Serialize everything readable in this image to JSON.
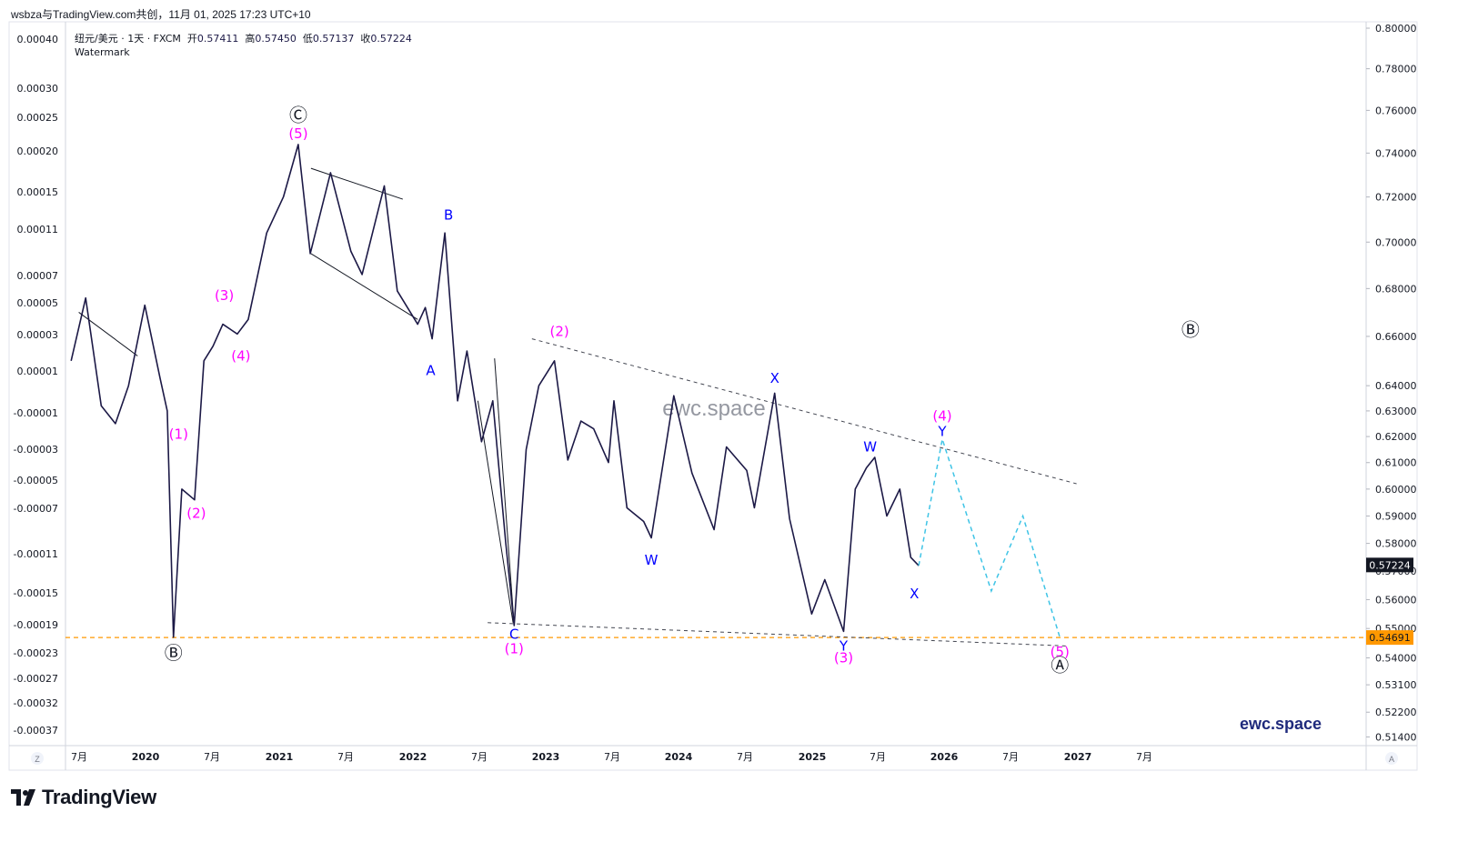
{
  "header": {
    "title": "wsbza与TradingView.com共创，11月 01, 2025 17:23 UTC+10"
  },
  "legend": {
    "symbol": "纽元/美元 · 1天 · FXCM",
    "open_label": "开",
    "open": "0.57411",
    "high_label": "高",
    "high": "0.57450",
    "low_label": "低",
    "low": "0.57137",
    "close_label": "收",
    "close": "0.57224",
    "indicator": "Watermark"
  },
  "watermark": "ewc.space",
  "brand": "ewc.space",
  "footer": {
    "logo_text": "TradingView"
  },
  "axis_buttons": {
    "left": "Z",
    "right": "A"
  },
  "colors": {
    "candles": "#1c1946",
    "wave_magenta": "#ff00ff",
    "wave_blue": "#0000ff",
    "projection": "#3fc4e6",
    "support_line": "#ff9800",
    "price_tag": "#131722",
    "support_tag": "#ff9800"
  },
  "chart_data": {
    "type": "line",
    "instrument": "NZD/USD",
    "timeframe": "1D",
    "right_axis": {
      "ticks": [
        "0.80000",
        "0.78000",
        "0.76000",
        "0.74000",
        "0.72000",
        "0.70000",
        "0.68000",
        "0.66000",
        "0.64000",
        "0.63000",
        "0.62000",
        "0.61000",
        "0.60000",
        "0.59000",
        "0.58000",
        "0.57000",
        "0.56000",
        "0.55000",
        "0.54000",
        "0.53100",
        "0.52200",
        "0.51400"
      ],
      "scale": "log",
      "current_price": "0.57224",
      "support_price": "0.54691"
    },
    "left_axis": {
      "ticks": [
        "0.00040",
        "0.00030",
        "0.00025",
        "0.00020",
        "0.00015",
        "0.00011",
        "0.00007",
        "0.00005",
        "0.00003",
        "0.00001",
        "-0.00001",
        "-0.00003",
        "-0.00005",
        "-0.00007",
        "-0.00011",
        "-0.00015",
        "-0.00019",
        "-0.00023",
        "-0.00027",
        "-0.00032",
        "-0.00037"
      ]
    },
    "x_axis": {
      "ticks": [
        "7月",
        "2020",
        "7月",
        "2021",
        "7月",
        "2022",
        "7月",
        "2023",
        "7月",
        "2024",
        "7月",
        "2025",
        "7月",
        "2026",
        "7月",
        "2027",
        "7月"
      ]
    },
    "series": [
      {
        "values": [
          {
            "x": "2019-06-10",
            "y": 0.65
          },
          {
            "x": "2019-07-20",
            "y": 0.676
          },
          {
            "x": "2019-09-01",
            "y": 0.632
          },
          {
            "x": "2019-10-10",
            "y": 0.625
          },
          {
            "x": "2019-11-15",
            "y": 0.64
          },
          {
            "x": "2019-12-30",
            "y": 0.673
          },
          {
            "x": "2020-02-10",
            "y": 0.643
          },
          {
            "x": "2020-03-01",
            "y": 0.63
          },
          {
            "x": "2020-03-18",
            "y": 0.547
          },
          {
            "x": "2020-04-10",
            "y": 0.6
          },
          {
            "x": "2020-05-15",
            "y": 0.596
          },
          {
            "x": "2020-06-10",
            "y": 0.65
          },
          {
            "x": "2020-07-05",
            "y": 0.656
          },
          {
            "x": "2020-08-01",
            "y": 0.665
          },
          {
            "x": "2020-09-10",
            "y": 0.661
          },
          {
            "x": "2020-10-10",
            "y": 0.667
          },
          {
            "x": "2020-11-30",
            "y": 0.704
          },
          {
            "x": "2021-01-15",
            "y": 0.72
          },
          {
            "x": "2021-02-25",
            "y": 0.744
          },
          {
            "x": "2021-03-30",
            "y": 0.695
          },
          {
            "x": "2021-05-25",
            "y": 0.731
          },
          {
            "x": "2021-07-20",
            "y": 0.696
          },
          {
            "x": "2021-08-20",
            "y": 0.686
          },
          {
            "x": "2021-10-20",
            "y": 0.725
          },
          {
            "x": "2021-11-25",
            "y": 0.679
          },
          {
            "x": "2022-01-20",
            "y": 0.665
          },
          {
            "x": "2022-02-10",
            "y": 0.672
          },
          {
            "x": "2022-03-01",
            "y": 0.659
          },
          {
            "x": "2022-04-05",
            "y": 0.704
          },
          {
            "x": "2022-05-10",
            "y": 0.634
          },
          {
            "x": "2022-06-05",
            "y": 0.654
          },
          {
            "x": "2022-07-15",
            "y": 0.618
          },
          {
            "x": "2022-08-15",
            "y": 0.634
          },
          {
            "x": "2022-09-20",
            "y": 0.58
          },
          {
            "x": "2022-10-13",
            "y": 0.551
          },
          {
            "x": "2022-11-15",
            "y": 0.615
          },
          {
            "x": "2022-12-20",
            "y": 0.64
          },
          {
            "x": "2023-02-01",
            "y": 0.65
          },
          {
            "x": "2023-03-10",
            "y": 0.611
          },
          {
            "x": "2023-04-15",
            "y": 0.626
          },
          {
            "x": "2023-05-20",
            "y": 0.623
          },
          {
            "x": "2023-06-30",
            "y": 0.61
          },
          {
            "x": "2023-07-15",
            "y": 0.634
          },
          {
            "x": "2023-08-20",
            "y": 0.593
          },
          {
            "x": "2023-10-05",
            "y": 0.588
          },
          {
            "x": "2023-10-26",
            "y": 0.582
          },
          {
            "x": "2023-12-27",
            "y": 0.636
          },
          {
            "x": "2024-02-15",
            "y": 0.606
          },
          {
            "x": "2024-04-16",
            "y": 0.585
          },
          {
            "x": "2024-05-20",
            "y": 0.616
          },
          {
            "x": "2024-07-15",
            "y": 0.607
          },
          {
            "x": "2024-08-05",
            "y": 0.593
          },
          {
            "x": "2024-09-30",
            "y": 0.637
          },
          {
            "x": "2024-11-10",
            "y": 0.589
          },
          {
            "x": "2025-01-10",
            "y": 0.555
          },
          {
            "x": "2025-02-15",
            "y": 0.567
          },
          {
            "x": "2025-04-08",
            "y": 0.549
          },
          {
            "x": "2025-05-10",
            "y": 0.6
          },
          {
            "x": "2025-06-10",
            "y": 0.608
          },
          {
            "x": "2025-07-03",
            "y": 0.612
          },
          {
            "x": "2025-08-05",
            "y": 0.59
          },
          {
            "x": "2025-09-10",
            "y": 0.6
          },
          {
            "x": "2025-10-10",
            "y": 0.575
          },
          {
            "x": "2025-11-01",
            "y": 0.572
          }
        ]
      }
    ],
    "projection": [
      {
        "x": "2025-11-01",
        "y": 0.572
      },
      {
        "x": "2026-01-05",
        "y": 0.619
      },
      {
        "x": "2026-05-20",
        "y": 0.563
      },
      {
        "x": "2026-08-15",
        "y": 0.59
      },
      {
        "x": "2026-11-25",
        "y": 0.547
      }
    ],
    "annotations": [
      {
        "text": "Ⓒ",
        "x": "2021-02-25",
        "y": 0.757,
        "color": "#131722"
      },
      {
        "text": "(5)",
        "x": "2021-02-25",
        "y": 0.749,
        "color": "#ff00ff"
      },
      {
        "text": "Ⓑ",
        "x": "2020-03-18",
        "y": 0.541,
        "color": "#131722"
      },
      {
        "text": "(1)",
        "x": "2020-04-01",
        "y": 0.621,
        "color": "#ff00ff"
      },
      {
        "text": "(2)",
        "x": "2020-05-20",
        "y": 0.591,
        "color": "#ff00ff"
      },
      {
        "text": "(3)",
        "x": "2020-08-05",
        "y": 0.677,
        "color": "#ff00ff"
      },
      {
        "text": "(4)",
        "x": "2020-09-20",
        "y": 0.652,
        "color": "#ff00ff"
      },
      {
        "text": "B",
        "x": "2022-04-15",
        "y": 0.712,
        "color": "#0000ff"
      },
      {
        "text": "A",
        "x": "2022-02-25",
        "y": 0.646,
        "color": "#0000ff"
      },
      {
        "text": "(2)",
        "x": "2023-02-15",
        "y": 0.662,
        "color": "#ff00ff"
      },
      {
        "text": "C",
        "x": "2022-10-13",
        "y": 0.548,
        "color": "#0000ff"
      },
      {
        "text": "(1)",
        "x": "2022-10-13",
        "y": 0.543,
        "color": "#ff00ff"
      },
      {
        "text": "W",
        "x": "2023-10-26",
        "y": 0.574,
        "color": "#0000ff"
      },
      {
        "text": "X",
        "x": "2024-09-30",
        "y": 0.643,
        "color": "#0000ff"
      },
      {
        "text": "W",
        "x": "2025-06-20",
        "y": 0.616,
        "color": "#0000ff"
      },
      {
        "text": "X",
        "x": "2025-10-20",
        "y": 0.562,
        "color": "#0000ff"
      },
      {
        "text": "Y",
        "x": "2025-04-08",
        "y": 0.544,
        "color": "#0000ff"
      },
      {
        "text": "(3)",
        "x": "2025-04-08",
        "y": 0.54,
        "color": "#ff00ff"
      },
      {
        "text": "(4)",
        "x": "2026-01-05",
        "y": 0.628,
        "color": "#ff00ff"
      },
      {
        "text": "Y",
        "x": "2026-01-05",
        "y": 0.622,
        "color": "#0000ff"
      },
      {
        "text": "(5)",
        "x": "2026-11-25",
        "y": 0.542,
        "color": "#ff00ff"
      },
      {
        "text": "Ⓐ",
        "x": "2026-11-25",
        "y": 0.537,
        "color": "#131722"
      },
      {
        "text": "Ⓑ",
        "x": "2027-11-20",
        "y": 0.662,
        "color": "#131722"
      }
    ],
    "trendlines": [
      {
        "style": "dashed",
        "from": {
          "x": "2022-12-01",
          "y": 0.659
        },
        "to": {
          "x": "2027-01-10",
          "y": 0.602
        }
      },
      {
        "style": "dashed",
        "from": {
          "x": "2022-08-01",
          "y": 0.552
        },
        "to": {
          "x": "2026-12-20",
          "y": 0.544
        }
      },
      {
        "style": "solid",
        "from": {
          "x": "2019-07-01",
          "y": 0.67
        },
        "to": {
          "x": "2019-12-10",
          "y": 0.652
        }
      },
      {
        "style": "solid",
        "from": {
          "x": "2021-04-01",
          "y": 0.733
        },
        "to": {
          "x": "2021-12-10",
          "y": 0.719
        }
      },
      {
        "style": "solid",
        "from": {
          "x": "2021-04-01",
          "y": 0.695
        },
        "to": {
          "x": "2022-01-20",
          "y": 0.667
        }
      },
      {
        "style": "solid",
        "from": {
          "x": "2022-08-20",
          "y": 0.651
        },
        "to": {
          "x": "2022-10-13",
          "y": 0.551
        }
      },
      {
        "style": "solid",
        "from": {
          "x": "2022-07-05",
          "y": 0.634
        },
        "to": {
          "x": "2022-10-10",
          "y": 0.552
        }
      }
    ],
    "grid": false
  }
}
